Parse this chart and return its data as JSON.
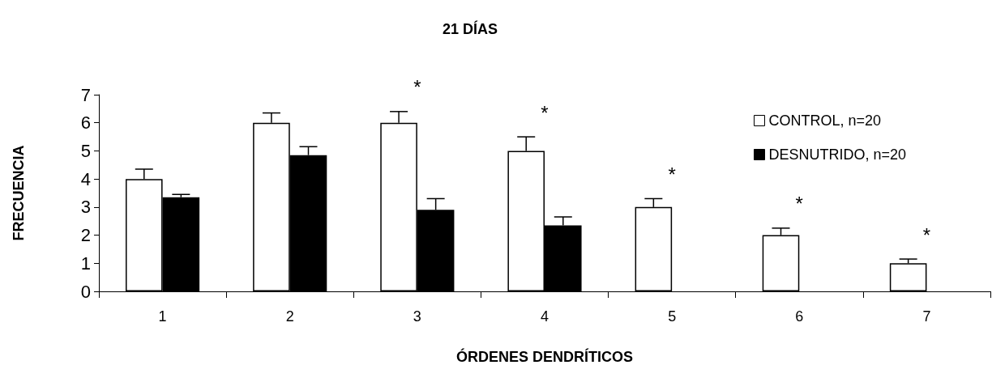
{
  "chart_data": {
    "type": "bar",
    "title": "21 DÍAS",
    "xlabel": "ÓRDENES DENDRÍTICOS",
    "ylabel": "FRECUENCIA",
    "categories": [
      "1",
      "2",
      "3",
      "4",
      "5",
      "6",
      "7"
    ],
    "series": [
      {
        "name": "CONTROL, n=20",
        "color": "#ffffff",
        "values": [
          4,
          6,
          6,
          5,
          3,
          2,
          1
        ],
        "errors": [
          [
            4,
            4.35
          ],
          [
            6,
            6.35
          ],
          [
            6,
            6.4
          ],
          [
            5,
            5.5
          ],
          [
            3,
            3.3
          ],
          [
            2,
            2.25
          ],
          [
            1,
            1.15
          ]
        ]
      },
      {
        "name": "DESNUTRIDO, n=20",
        "color": "#000000",
        "values": [
          3.35,
          4.85,
          2.9,
          2.35,
          null,
          null,
          null
        ],
        "errors": [
          [
            3.35,
            3.45
          ],
          [
            4.85,
            5.15
          ],
          [
            2.9,
            3.3
          ],
          [
            2.35,
            2.65
          ],
          null,
          null,
          null
        ]
      }
    ],
    "annotations": [
      "*",
      "*",
      "*",
      "*",
      "*"
    ],
    "ylim": [
      0,
      7
    ],
    "yticks": [
      0,
      1,
      2,
      3,
      4,
      5,
      6,
      7
    ],
    "grid": false,
    "legend": "top right"
  }
}
